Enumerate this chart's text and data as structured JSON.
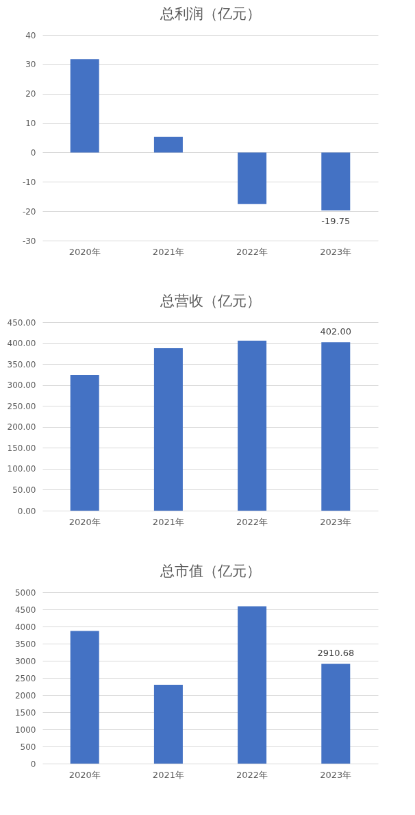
{
  "chart_data": [
    {
      "type": "bar",
      "title": "总利润（亿元）",
      "categories": [
        "2020年",
        "2021年",
        "2022年",
        "2023年"
      ],
      "values": [
        31.8,
        5.3,
        -17.6,
        -19.75
      ],
      "color": "#4472c4",
      "value_labels": [
        null,
        null,
        null,
        "-19.75"
      ],
      "ylim": [
        -30,
        40
      ],
      "yticks": [
        -30,
        -20,
        -10,
        0,
        10,
        20,
        30,
        40
      ],
      "grid": "y"
    },
    {
      "type": "bar",
      "title": "总营收（亿元）",
      "categories": [
        "2020年",
        "2021年",
        "2022年",
        "2023年"
      ],
      "values": [
        324,
        388,
        406,
        402.0
      ],
      "color": "#4472c4",
      "value_labels": [
        null,
        null,
        null,
        "402.00"
      ],
      "ylim": [
        0,
        450
      ],
      "yticks": [
        {
          "value": 0,
          "label": "0.00"
        },
        {
          "value": 50,
          "label": "50.00"
        },
        {
          "value": 100,
          "label": "100.00"
        },
        {
          "value": 150,
          "label": "150.00"
        },
        {
          "value": 200,
          "label": "200.00"
        },
        {
          "value": 250,
          "label": "250.00"
        },
        {
          "value": 300,
          "label": "300.00"
        },
        {
          "value": 350,
          "label": "350.00"
        },
        {
          "value": 400,
          "label": "400.00"
        },
        {
          "value": 450,
          "label": "450.00"
        }
      ],
      "grid": "y"
    },
    {
      "type": "bar",
      "title": "总市值（亿元）",
      "categories": [
        "2020年",
        "2021年",
        "2022年",
        "2023年"
      ],
      "values": [
        3870,
        2300,
        4590,
        2910.68
      ],
      "color": "#4472c4",
      "value_labels": [
        null,
        null,
        null,
        "2910.68"
      ],
      "ylim": [
        0,
        5000
      ],
      "yticks": [
        0,
        500,
        1000,
        1500,
        2000,
        2500,
        3000,
        3500,
        4000,
        4500,
        5000
      ],
      "grid": "y"
    }
  ]
}
